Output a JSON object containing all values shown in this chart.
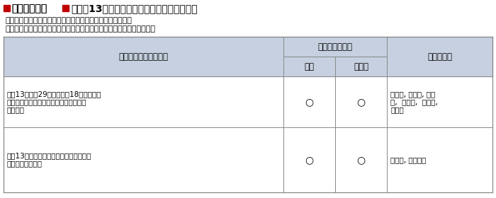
{
  "title": "表１－３－１",
  "title_suffix": "　平成13年激甚災害適用措置及び主な被災地",
  "note1": "　　　５条＝農地等の災害復旧事業等に係る補助の特別措置",
  "note2": "　　　２４条＝小災害債に係る元利償還金の基準財政需要額への算入等",
  "header_col1": "激　　甚　　災　　害",
  "header_col2_main": "適　用　措　置",
  "header_col2_sub1": "５条",
  "header_col2_sub2": "２４条",
  "header_col3": "主な被災地",
  "row1_col1_lines": [
    "平成13年５月29日から７月18日までの間",
    "における梅雨前線により発生した豪雨に",
    "よる災害"
  ],
  "row1_col2_1": "○",
  "row1_col2_2": "○",
  "row1_col3_lines": [
    "福岡県, 佐賀県, 熊本",
    "県,  大分県,  愛媛県,",
    "長崎県"
  ],
  "row2_col1_lines": [
    "平成13年９月２日から同月７日までの間",
    "の豪雨による災害"
  ],
  "row2_col2_1": "○",
  "row2_col2_2": "○",
  "row2_col3_lines": [
    "高知県, 鹿児島県"
  ],
  "bg_color": "#ffffff",
  "header_bg": "#c6d0e0",
  "table_border": "#888888",
  "marker_color": "#c00000",
  "text_color": "#000000"
}
